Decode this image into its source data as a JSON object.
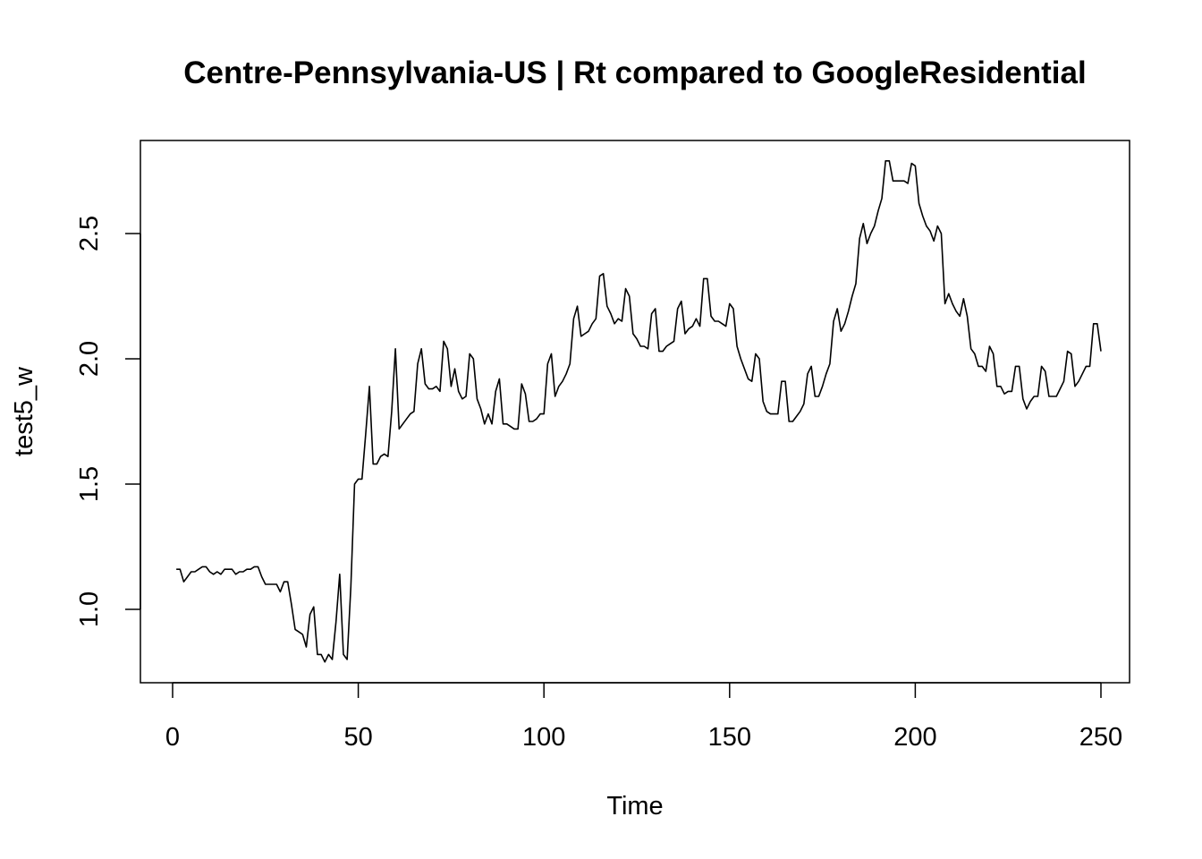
{
  "chart_data": {
    "type": "line",
    "title": "Centre-Pennsylvania-US | Rt compared to GoogleResidential",
    "xlabel": "Time",
    "ylabel": "test5_w",
    "xlim": [
      1,
      248
    ],
    "ylim": [
      0.79,
      2.79
    ],
    "x_ticks": [
      0,
      50,
      100,
      150,
      200,
      250
    ],
    "y_ticks": [
      1.0,
      1.5,
      2.0,
      2.5
    ],
    "x_tick_labels": [
      "0",
      "50",
      "100",
      "150",
      "200",
      "250"
    ],
    "y_tick_labels": [
      "1.0",
      "1.5",
      "2.0",
      "2.5"
    ],
    "grid": false,
    "series": [
      {
        "values": [
          1.16,
          1.16,
          1.11,
          1.13,
          1.15,
          1.15,
          1.16,
          1.17,
          1.17,
          1.15,
          1.14,
          1.15,
          1.14,
          1.16,
          1.16,
          1.16,
          1.14,
          1.15,
          1.15,
          1.16,
          1.16,
          1.17,
          1.17,
          1.13,
          1.1,
          1.1,
          1.1,
          1.1,
          1.07,
          1.11,
          1.11,
          1.02,
          0.92,
          0.91,
          0.9,
          0.85,
          0.98,
          1.01,
          0.82,
          0.82,
          0.79,
          0.82,
          0.8,
          0.95,
          1.14,
          0.82,
          0.8,
          1.09,
          1.5,
          1.52,
          1.52,
          1.7,
          1.89,
          1.58,
          1.58,
          1.61,
          1.62,
          1.61,
          1.79,
          2.04,
          1.72,
          1.74,
          1.76,
          1.78,
          1.79,
          1.98,
          2.04,
          1.9,
          1.88,
          1.88,
          1.89,
          1.87,
          2.07,
          2.04,
          1.89,
          1.96,
          1.87,
          1.84,
          1.85,
          2.02,
          2.0,
          1.84,
          1.8,
          1.74,
          1.78,
          1.74,
          1.87,
          1.92,
          1.74,
          1.74,
          1.73,
          1.72,
          1.72,
          1.9,
          1.86,
          1.75,
          1.75,
          1.76,
          1.78,
          1.78,
          1.98,
          2.02,
          1.85,
          1.89,
          1.91,
          1.94,
          1.98,
          2.16,
          2.21,
          2.09,
          2.1,
          2.11,
          2.14,
          2.16,
          2.33,
          2.34,
          2.21,
          2.18,
          2.14,
          2.16,
          2.15,
          2.28,
          2.25,
          2.1,
          2.08,
          2.05,
          2.05,
          2.04,
          2.18,
          2.2,
          2.03,
          2.03,
          2.05,
          2.06,
          2.07,
          2.2,
          2.23,
          2.1,
          2.12,
          2.13,
          2.16,
          2.13,
          2.32,
          2.32,
          2.17,
          2.15,
          2.15,
          2.14,
          2.13,
          2.22,
          2.2,
          2.05,
          2.0,
          1.96,
          1.92,
          1.91,
          2.02,
          2.0,
          1.83,
          1.79,
          1.78,
          1.78,
          1.78,
          1.91,
          1.91,
          1.75,
          1.75,
          1.77,
          1.79,
          1.82,
          1.94,
          1.97,
          1.85,
          1.85,
          1.89,
          1.94,
          1.98,
          2.15,
          2.2,
          2.11,
          2.14,
          2.19,
          2.25,
          2.3,
          2.48,
          2.54,
          2.46,
          2.5,
          2.53,
          2.59,
          2.64,
          2.79,
          2.79,
          2.71,
          2.71,
          2.71,
          2.71,
          2.7,
          2.78,
          2.77,
          2.62,
          2.57,
          2.53,
          2.51,
          2.47,
          2.53,
          2.5,
          2.22,
          2.26,
          2.22,
          2.19,
          2.17,
          2.24,
          2.17,
          2.04,
          2.02,
          1.97,
          1.97,
          1.95,
          2.05,
          2.02,
          1.89,
          1.89,
          1.86,
          1.87,
          1.87,
          1.97,
          1.97,
          1.84,
          1.8,
          1.83,
          1.85,
          1.85,
          1.97,
          1.95,
          1.85,
          1.85,
          1.85,
          1.88,
          1.91,
          2.03,
          2.02,
          1.89,
          1.91,
          1.94,
          1.97,
          1.97,
          2.14,
          2.14,
          2.03
        ]
      }
    ]
  }
}
